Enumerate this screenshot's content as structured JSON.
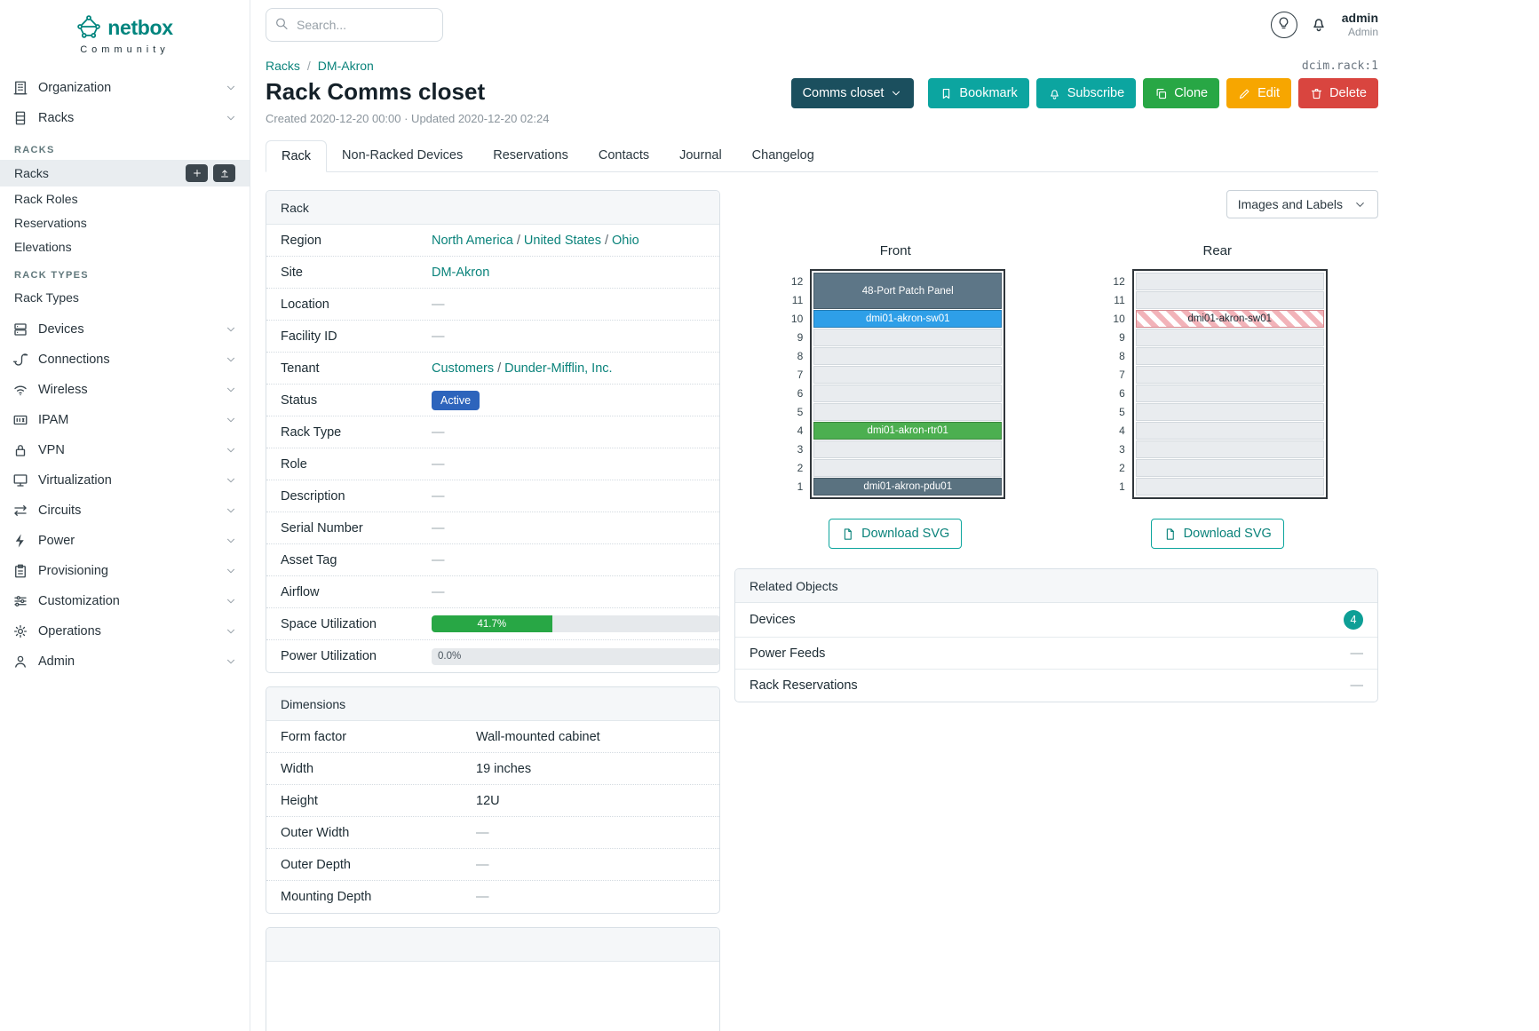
{
  "colors": {
    "brand_teal": "#00857e",
    "link_teal": "#0b837b",
    "btn_dark_teal": "#1b4f5e",
    "btn_teal": "#0ca5a0",
    "btn_green": "#28a745",
    "btn_yellow": "#f7a600",
    "btn_red": "#d9453f",
    "status_active_badge": "#2d64bc",
    "utilization_green": "#28a745",
    "count_badge_teal": "#0e9f96"
  },
  "dash_char": "—",
  "brand": {
    "name": "netbox",
    "tagline": "Community"
  },
  "topbar": {
    "search_placeholder": "Search...",
    "user_name": "admin",
    "user_role": "Admin"
  },
  "sidebar": {
    "items": [
      {
        "label": "Organization",
        "icon": "building"
      },
      {
        "label": "Racks",
        "icon": "rack",
        "expanded": true,
        "groups": [
          {
            "header": "RACKS",
            "items": [
              {
                "label": "Racks",
                "active": true,
                "actions": [
                  "plus",
                  "upload"
                ]
              },
              {
                "label": "Rack Roles"
              },
              {
                "label": "Reservations"
              },
              {
                "label": "Elevations"
              }
            ]
          },
          {
            "header": "RACK TYPES",
            "items": [
              {
                "label": "Rack Types"
              }
            ]
          }
        ]
      },
      {
        "label": "Devices",
        "icon": "devices"
      },
      {
        "label": "Connections",
        "icon": "connections"
      },
      {
        "label": "Wireless",
        "icon": "wireless"
      },
      {
        "label": "IPAM",
        "icon": "ipam"
      },
      {
        "label": "VPN",
        "icon": "vpn"
      },
      {
        "label": "Virtualization",
        "icon": "virtualization"
      },
      {
        "label": "Circuits",
        "icon": "circuits"
      },
      {
        "label": "Power",
        "icon": "power"
      },
      {
        "label": "Provisioning",
        "icon": "provisioning"
      },
      {
        "label": "Customization",
        "icon": "customization"
      },
      {
        "label": "Operations",
        "icon": "operations"
      },
      {
        "label": "Admin",
        "icon": "admin"
      }
    ]
  },
  "breadcrumb": [
    {
      "label": "Racks"
    },
    {
      "label": "DM-Akron"
    }
  ],
  "object_id": "dcim.rack:1",
  "page": {
    "title": "Rack Comms closet",
    "meta": "Created 2020-12-20 00:00 · Updated 2020-12-20 02:24"
  },
  "action_buttons": [
    {
      "label": "Comms closet",
      "style": "dark",
      "icon_right": "chevron-down"
    },
    {
      "label": "Bookmark",
      "style": "teal",
      "icon": "bookmark"
    },
    {
      "label": "Subscribe",
      "style": "teal",
      "icon": "bell"
    },
    {
      "label": "Clone",
      "style": "green",
      "icon": "copy"
    },
    {
      "label": "Edit",
      "style": "yellow",
      "icon": "pencil"
    },
    {
      "label": "Delete",
      "style": "red",
      "icon": "trash"
    }
  ],
  "tabs": [
    {
      "label": "Rack",
      "active": true
    },
    {
      "label": "Non-Racked Devices"
    },
    {
      "label": "Reservations"
    },
    {
      "label": "Contacts"
    },
    {
      "label": "Journal"
    },
    {
      "label": "Changelog"
    }
  ],
  "rack_panel": {
    "title": "Rack",
    "label_width": 170,
    "rows": [
      {
        "label": "Region",
        "type": "links",
        "links": [
          "North America",
          "United States",
          "Ohio"
        ]
      },
      {
        "label": "Site",
        "type": "links",
        "links": [
          "DM-Akron"
        ]
      },
      {
        "label": "Location",
        "type": "dash"
      },
      {
        "label": "Facility ID",
        "type": "dash"
      },
      {
        "label": "Tenant",
        "type": "links",
        "links": [
          "Customers",
          "Dunder-Mifflin, Inc."
        ]
      },
      {
        "label": "Status",
        "type": "badge",
        "value": "Active"
      },
      {
        "label": "Rack Type",
        "type": "dash"
      },
      {
        "label": "Role",
        "type": "dash"
      },
      {
        "label": "Description",
        "type": "dash"
      },
      {
        "label": "Serial Number",
        "type": "dash"
      },
      {
        "label": "Asset Tag",
        "type": "dash"
      },
      {
        "label": "Airflow",
        "type": "dash"
      },
      {
        "label": "Space Utilization",
        "type": "progress",
        "percent": 41.7,
        "text": "41.7%"
      },
      {
        "label": "Power Utilization",
        "type": "progress",
        "percent": 0,
        "text": "0.0%"
      }
    ]
  },
  "dimensions_panel": {
    "title": "Dimensions",
    "label_width": 220,
    "rows": [
      {
        "label": "Form factor",
        "type": "text",
        "value": "Wall-mounted cabinet"
      },
      {
        "label": "Width",
        "type": "text",
        "value": "19 inches"
      },
      {
        "label": "Height",
        "type": "text",
        "value": "12U"
      },
      {
        "label": "Outer Width",
        "type": "dash"
      },
      {
        "label": "Outer Depth",
        "type": "dash"
      },
      {
        "label": "Mounting Depth",
        "type": "dash"
      }
    ]
  },
  "elevations": {
    "view_select_label": "Images and Labels",
    "download_label": "Download SVG",
    "units": 12,
    "views": [
      {
        "title": "Front",
        "devices": [
          {
            "name": "48-Port Patch Panel",
            "top_unit": 12,
            "u_height": 2,
            "color": "#5d7687",
            "text": "#ffffff"
          },
          {
            "name": "dmi01-akron-sw01",
            "top_unit": 10,
            "u_height": 1,
            "color": "#2e9fe8",
            "text": "#ffffff"
          },
          {
            "name": "dmi01-akron-rtr01",
            "top_unit": 4,
            "u_height": 1,
            "color": "#4caf50",
            "text": "#ffffff"
          },
          {
            "name": "dmi01-akron-pdu01",
            "top_unit": 1,
            "u_height": 1,
            "color": "#5a7280",
            "text": "#ffffff"
          }
        ]
      },
      {
        "title": "Rear",
        "devices": [
          {
            "name": "dmi01-akron-sw01",
            "top_unit": 10,
            "u_height": 1,
            "striped": true,
            "text": "#1c2b33"
          }
        ]
      }
    ]
  },
  "related_objects": {
    "title": "Related Objects",
    "rows": [
      {
        "label": "Devices",
        "badge": "4"
      },
      {
        "label": "Power Feeds",
        "value": "—"
      },
      {
        "label": "Rack Reservations",
        "value": "—"
      }
    ]
  }
}
